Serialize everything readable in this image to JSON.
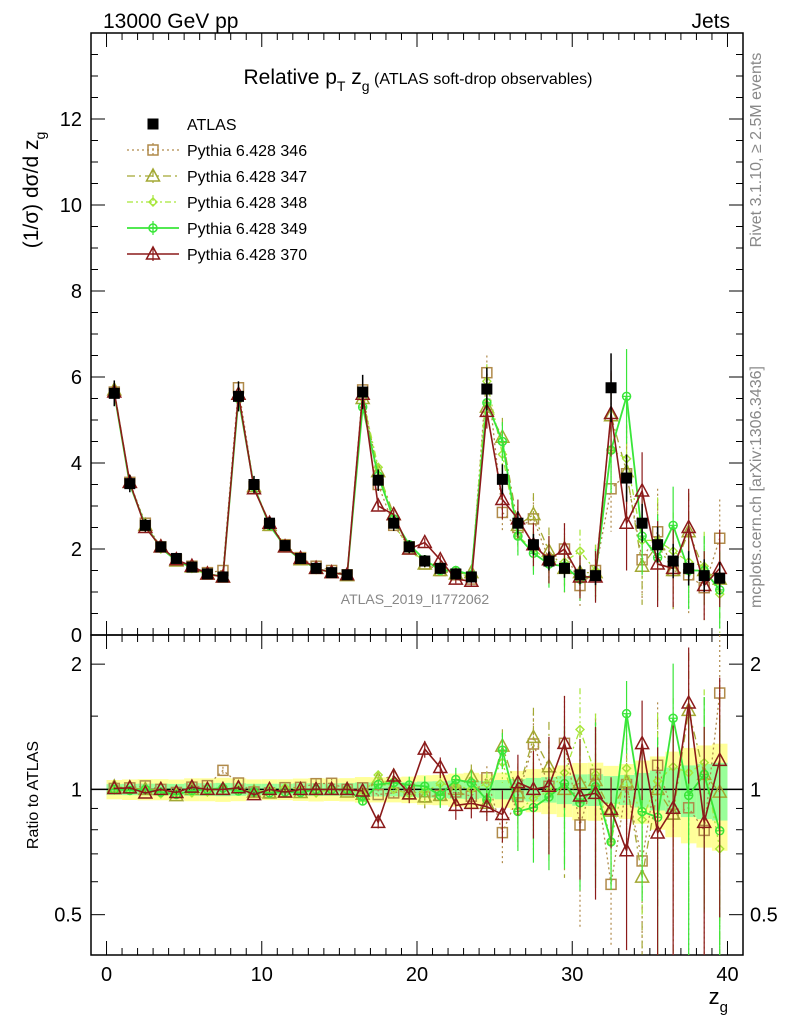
{
  "header": {
    "left": "13000 GeV pp",
    "right": "Jets"
  },
  "side_labels": {
    "rivet": "Rivet 3.1.10, ≥ 2.5M events",
    "mcplots": "mcplots.cern.ch [arXiv:1306.3436]"
  },
  "watermark": "ATLAS_2019_I1772062",
  "colors": {
    "atlas": "#000000",
    "p346": "#b08a4a",
    "p347": "#a3a833",
    "p348": "#a6e639",
    "p349": "#39e639",
    "p370": "#8b1a1a",
    "band_outer": "#ffff99",
    "band_inner": "#99ff99"
  },
  "chart_data": {
    "type": "line",
    "title_parts": {
      "prefix": "Relative p",
      "sub1": "T",
      "mid": " z",
      "sub2": "g",
      "suffix": " (ATLAS soft-drop observables)"
    },
    "ylabel_main": "(1/σ) dσ/d z",
    "ylabel_main_sub": "g",
    "ylabel_ratio": "Ratio to ATLAS",
    "xlabel": "z",
    "xlabel_sub": "g",
    "xlim": [
      -1,
      41
    ],
    "ylim_main": [
      0,
      14
    ],
    "ylim_ratio": [
      0.4,
      2.35
    ],
    "ratio_log": true,
    "x_ticks": [
      0,
      10,
      20,
      30,
      40
    ],
    "x_tick_labels": [
      "0",
      "10",
      "20",
      "30",
      "40"
    ],
    "y_ticks_main": [
      0,
      2,
      4,
      6,
      8,
      10,
      12
    ],
    "y_tick_labels_main": [
      "0",
      "2",
      "4",
      "6",
      "8",
      "10",
      "12"
    ],
    "y_ticks_ratio": [
      0.5,
      1,
      2
    ],
    "y_tick_labels_ratio": [
      "0.5",
      "1",
      "2"
    ],
    "x": [
      0.5,
      1.5,
      2.5,
      3.5,
      4.5,
      5.5,
      6.5,
      7.5,
      8.5,
      9.5,
      10.5,
      11.5,
      12.5,
      13.5,
      14.5,
      15.5,
      16.5,
      17.5,
      18.5,
      19.5,
      20.5,
      21.5,
      22.5,
      23.5,
      24.5,
      25.5,
      26.5,
      27.5,
      28.5,
      29.5,
      30.5,
      31.5,
      32.5,
      33.5,
      34.5,
      35.5,
      36.5,
      37.5,
      38.5,
      39.5
    ],
    "data": {
      "name": "ATLAS",
      "values": [
        5.62,
        3.52,
        2.55,
        2.05,
        1.78,
        1.58,
        1.42,
        1.35,
        5.55,
        3.5,
        2.6,
        2.08,
        1.78,
        1.55,
        1.45,
        1.4,
        5.65,
        3.6,
        2.6,
        2.05,
        1.72,
        1.55,
        1.42,
        1.35,
        5.72,
        3.62,
        2.6,
        2.1,
        1.72,
        1.55,
        1.4,
        1.38,
        5.75,
        3.65,
        2.6,
        2.1,
        1.72,
        1.55,
        1.38,
        1.32
      ],
      "errors": [
        0.3,
        0.2,
        0.15,
        0.12,
        0.1,
        0.1,
        0.09,
        0.09,
        0.35,
        0.2,
        0.15,
        0.12,
        0.11,
        0.1,
        0.09,
        0.09,
        0.4,
        0.25,
        0.18,
        0.15,
        0.14,
        0.13,
        0.13,
        0.13,
        0.5,
        0.35,
        0.28,
        0.25,
        0.22,
        0.22,
        0.22,
        0.22,
        0.8,
        0.55,
        0.45,
        0.42,
        0.4,
        0.4,
        0.38,
        0.38
      ]
    },
    "series": [
      {
        "name": "Pythia 6.428 346",
        "values": [
          5.65,
          3.55,
          2.6,
          2.05,
          1.75,
          1.6,
          1.45,
          1.5,
          5.75,
          3.45,
          2.55,
          2.1,
          1.8,
          1.6,
          1.5,
          1.4,
          5.7,
          3.5,
          2.55,
          2.05,
          1.65,
          1.5,
          1.4,
          1.3,
          6.1,
          2.85,
          2.5,
          2.7,
          1.75,
          2.0,
          1.15,
          1.5,
          3.4,
          3.75,
          1.75,
          2.4,
          1.5,
          1.4,
          1.1,
          2.25
        ],
        "errors": [
          0.03,
          0.02,
          0.02,
          0.02,
          0.02,
          0.02,
          0.02,
          0.03,
          0.06,
          0.05,
          0.04,
          0.04,
          0.04,
          0.04,
          0.04,
          0.04,
          0.1,
          0.1,
          0.1,
          0.1,
          0.1,
          0.1,
          0.1,
          0.1,
          0.4,
          0.45,
          0.45,
          0.5,
          0.55,
          0.6,
          0.5,
          0.6,
          1.0,
          1.1,
          0.9,
          1.0,
          0.9,
          0.9,
          0.8,
          0.9
        ]
      },
      {
        "name": "Pythia 6.428 347",
        "values": [
          5.7,
          3.55,
          2.55,
          2.05,
          1.72,
          1.58,
          1.42,
          1.35,
          5.6,
          3.45,
          2.55,
          2.05,
          1.75,
          1.55,
          1.45,
          1.38,
          5.5,
          3.8,
          2.8,
          2.0,
          1.65,
          1.5,
          1.42,
          1.45,
          5.3,
          4.6,
          2.55,
          2.8,
          1.95,
          1.55,
          1.45,
          1.45,
          5.1,
          3.8,
          1.6,
          2.1,
          1.5,
          2.4,
          1.5,
          1.3
        ],
        "errors": [
          0.03,
          0.02,
          0.02,
          0.02,
          0.02,
          0.02,
          0.02,
          0.03,
          0.06,
          0.05,
          0.04,
          0.04,
          0.04,
          0.04,
          0.04,
          0.04,
          0.1,
          0.1,
          0.1,
          0.1,
          0.1,
          0.1,
          0.1,
          0.1,
          0.4,
          0.45,
          0.45,
          0.5,
          0.55,
          0.6,
          0.5,
          0.6,
          1.0,
          1.1,
          0.9,
          1.0,
          0.9,
          0.9,
          0.8,
          0.9
        ]
      },
      {
        "name": "Pythia 6.428 348",
        "values": [
          5.6,
          3.5,
          2.55,
          2.0,
          1.75,
          1.55,
          1.4,
          1.35,
          5.55,
          3.45,
          2.6,
          2.1,
          1.78,
          1.52,
          1.45,
          1.4,
          5.5,
          3.9,
          2.6,
          2.0,
          1.7,
          1.6,
          1.45,
          1.35,
          5.9,
          4.2,
          2.3,
          2.0,
          1.7,
          1.7,
          1.95,
          1.5,
          4.3,
          4.1,
          2.2,
          2.2,
          1.95,
          1.7,
          1.6,
          0.95
        ],
        "errors": [
          0.03,
          0.02,
          0.02,
          0.02,
          0.02,
          0.02,
          0.02,
          0.03,
          0.06,
          0.05,
          0.04,
          0.04,
          0.04,
          0.04,
          0.04,
          0.04,
          0.1,
          0.1,
          0.1,
          0.1,
          0.1,
          0.1,
          0.1,
          0.1,
          0.4,
          0.45,
          0.45,
          0.5,
          0.55,
          0.6,
          0.5,
          0.6,
          1.0,
          1.1,
          0.9,
          1.0,
          0.9,
          0.9,
          0.8,
          0.9
        ]
      },
      {
        "name": "Pythia 6.428 349",
        "values": [
          5.62,
          3.5,
          2.55,
          2.02,
          1.73,
          1.57,
          1.42,
          1.36,
          5.5,
          3.45,
          2.55,
          2.05,
          1.75,
          1.55,
          1.45,
          1.4,
          5.3,
          3.7,
          2.7,
          2.1,
          1.75,
          1.5,
          1.5,
          1.4,
          5.4,
          4.5,
          2.3,
          1.9,
          1.65,
          1.6,
          1.3,
          1.4,
          4.3,
          5.55,
          2.3,
          1.8,
          2.55,
          1.5,
          1.5,
          1.05
        ],
        "errors": [
          0.03,
          0.02,
          0.02,
          0.02,
          0.02,
          0.02,
          0.02,
          0.03,
          0.06,
          0.05,
          0.04,
          0.04,
          0.04,
          0.04,
          0.04,
          0.04,
          0.1,
          0.1,
          0.1,
          0.1,
          0.1,
          0.1,
          0.1,
          0.1,
          0.4,
          0.45,
          0.45,
          0.5,
          0.55,
          0.6,
          0.5,
          0.6,
          1.0,
          1.1,
          0.9,
          1.0,
          0.9,
          0.9,
          0.8,
          0.9
        ]
      },
      {
        "name": "Pythia 6.428 370",
        "values": [
          5.65,
          3.55,
          2.5,
          2.05,
          1.75,
          1.6,
          1.42,
          1.35,
          5.6,
          3.4,
          2.6,
          2.05,
          1.78,
          1.55,
          1.45,
          1.4,
          5.6,
          3.0,
          2.8,
          2.0,
          2.15,
          1.75,
          1.3,
          1.25,
          5.2,
          3.15,
          2.7,
          2.1,
          1.75,
          2.0,
          1.35,
          1.35,
          5.15,
          2.6,
          3.35,
          1.65,
          1.55,
          2.5,
          1.15,
          1.55
        ],
        "errors": [
          0.03,
          0.02,
          0.02,
          0.02,
          0.02,
          0.02,
          0.02,
          0.03,
          0.06,
          0.05,
          0.04,
          0.04,
          0.04,
          0.04,
          0.04,
          0.04,
          0.1,
          0.1,
          0.1,
          0.1,
          0.1,
          0.1,
          0.1,
          0.1,
          0.4,
          0.45,
          0.45,
          0.5,
          0.55,
          0.6,
          0.5,
          0.6,
          1.0,
          1.1,
          0.9,
          1.0,
          0.9,
          0.9,
          0.8,
          0.9
        ]
      }
    ],
    "legend_position": "top-left"
  }
}
